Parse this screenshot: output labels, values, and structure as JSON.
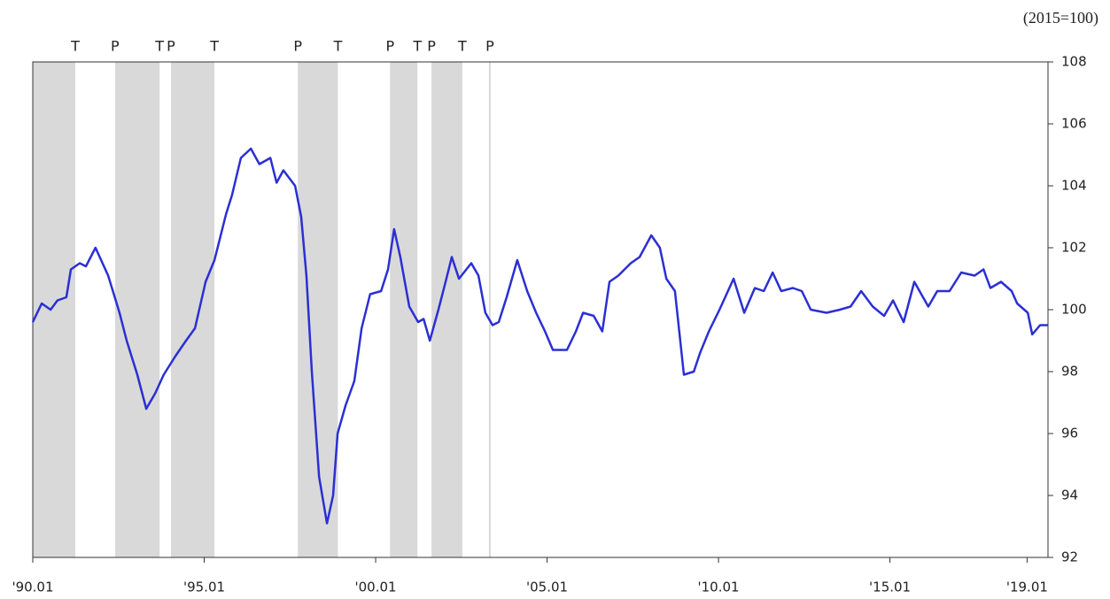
{
  "chart_data": {
    "type": "line",
    "unit_label": "(2015=100)",
    "x": [
      1990.0,
      1990.26,
      1990.52,
      1990.72,
      1990.98,
      1991.11,
      1991.37,
      1991.55,
      1991.83,
      1992.2,
      1992.53,
      1992.74,
      1993.05,
      1993.31,
      1993.57,
      1993.82,
      1994.16,
      1994.47,
      1994.73,
      1995.04,
      1995.3,
      1995.64,
      1995.81,
      1996.07,
      1996.36,
      1996.61,
      1996.93,
      1997.11,
      1997.31,
      1997.65,
      1997.83,
      1997.98,
      1998.14,
      1998.35,
      1998.58,
      1998.76,
      1998.89,
      1999.12,
      1999.38,
      1999.59,
      1999.84,
      2000.16,
      2000.36,
      2000.54,
      2000.72,
      2000.98,
      2001.24,
      2001.4,
      2001.58,
      2001.83,
      2002.04,
      2002.22,
      2002.43,
      2002.79,
      2003.0,
      2003.2,
      2003.41,
      2003.59,
      2003.82,
      2004.13,
      2004.42,
      2004.68,
      2004.94,
      2005.17,
      2005.58,
      2005.84,
      2006.05,
      2006.36,
      2006.61,
      2006.82,
      2007.08,
      2007.44,
      2007.7,
      2008.04,
      2008.29,
      2008.48,
      2008.73,
      2008.99,
      2009.28,
      2009.46,
      2009.72,
      2010.03,
      2010.44,
      2010.75,
      2011.06,
      2011.32,
      2011.58,
      2011.83,
      2012.17,
      2012.43,
      2012.69,
      2013.15,
      2013.54,
      2013.85,
      2014.16,
      2014.5,
      2014.83,
      2015.09,
      2015.4,
      2015.71,
      2016.12,
      2016.38,
      2016.74,
      2017.08,
      2017.47,
      2017.73,
      2017.93,
      2018.24,
      2018.55,
      2018.71,
      2019.02,
      2019.15,
      2019.38,
      2019.61
    ],
    "series": [
      {
        "color": "#2b2fd4",
        "values": [
          99.6,
          100.2,
          100.0,
          100.3,
          100.4,
          101.3,
          101.5,
          101.4,
          102.0,
          101.1,
          99.9,
          99.0,
          97.9,
          96.8,
          97.3,
          97.9,
          98.5,
          99.0,
          99.4,
          100.9,
          101.6,
          103.1,
          103.7,
          104.9,
          105.2,
          104.7,
          104.9,
          104.1,
          104.5,
          104.0,
          103.0,
          101.1,
          98.0,
          94.6,
          93.1,
          94.0,
          96.0,
          96.9,
          97.7,
          99.4,
          100.5,
          100.6,
          101.3,
          102.6,
          101.7,
          100.1,
          99.6,
          99.7,
          99.0,
          100.0,
          100.9,
          101.7,
          101.0,
          101.5,
          101.1,
          99.9,
          99.5,
          99.6,
          100.4,
          101.6,
          100.6,
          99.9,
          99.3,
          98.7,
          98.7,
          99.3,
          99.9,
          99.8,
          99.3,
          100.9,
          101.1,
          101.5,
          101.7,
          102.4,
          102.0,
          101.0,
          100.6,
          97.9,
          98.0,
          98.6,
          99.3,
          100.0,
          101.0,
          99.9,
          100.7,
          100.6,
          101.2,
          100.6,
          100.7,
          100.6,
          100.0,
          99.9,
          100.0,
          100.1,
          100.6,
          100.1,
          99.8,
          100.3,
          99.6,
          100.9,
          100.1,
          100.6,
          100.6,
          101.2,
          101.1,
          101.3,
          100.7,
          100.9,
          100.6,
          100.2,
          99.9,
          99.2,
          99.5,
          99.5
        ]
      }
    ],
    "xlim": [
      1990,
      2019.61
    ],
    "xticks": [
      {
        "value": 1990,
        "label": "'90.01"
      },
      {
        "value": 1995,
        "label": "'95.01"
      },
      {
        "value": 2000,
        "label": "'00.01"
      },
      {
        "value": 2005,
        "label": "'05.01"
      },
      {
        "value": 2010,
        "label": "'10.01"
      },
      {
        "value": 2015,
        "label": "'15.01"
      },
      {
        "value": 2019,
        "label": "'19.01"
      }
    ],
    "ylim": [
      92,
      108
    ],
    "yticks": [
      92,
      94,
      96,
      98,
      100,
      102,
      104,
      106,
      108
    ],
    "y_axis_side": "right",
    "shade_color": "#d9d9d9",
    "turning_points": [
      {
        "label": "T",
        "x": 1991.24
      },
      {
        "label": "P",
        "x": 1992.4
      },
      {
        "label": "T",
        "x": 1993.7
      },
      {
        "label": "P",
        "x": 1994.03
      },
      {
        "label": "T",
        "x": 1995.3
      },
      {
        "label": "P",
        "x": 1997.73
      },
      {
        "label": "T",
        "x": 1998.9
      },
      {
        "label": "P",
        "x": 2000.42
      },
      {
        "label": "T",
        "x": 2001.22
      },
      {
        "label": "P",
        "x": 2001.63
      },
      {
        "label": "T",
        "x": 2002.53
      },
      {
        "label": "P",
        "x": 2003.33
      }
    ]
  }
}
